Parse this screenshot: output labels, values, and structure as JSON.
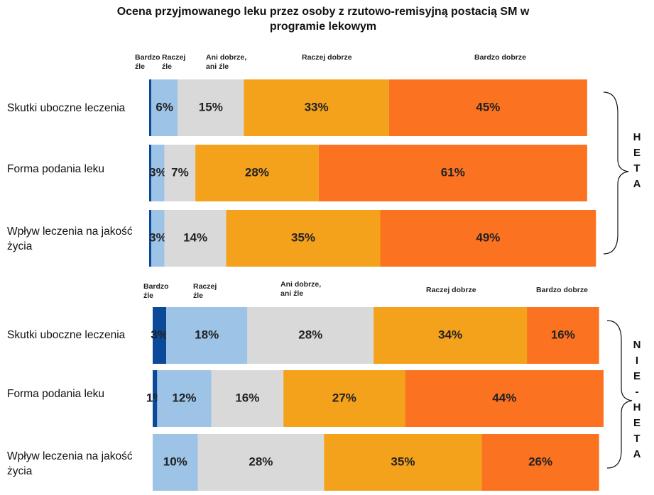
{
  "chart_data": [
    {
      "type": "bar",
      "orientation": "horizontal",
      "stacked": true,
      "title": "Ocena przyjmowanego leku przez osoby z rzutowo-remisyjną postacią SM w programie lekowym",
      "group_label": "HETA",
      "categories": [
        "Skutki uboczne leczenia",
        "Forma podania leku",
        "Wpływ leczenia na jakość życia"
      ],
      "series": [
        {
          "name": "Bardzo źle",
          "color": "#0b4a99",
          "values": [
            0.5,
            0.5,
            0.5
          ],
          "value_labels": [
            null,
            null,
            null
          ]
        },
        {
          "name": "Raczej źle",
          "color": "#9dc3e6",
          "values": [
            6,
            3,
            3
          ],
          "value_labels": [
            "6%",
            "3%",
            "3%"
          ]
        },
        {
          "name": "Ani dobrze, ani źle",
          "color": "#d9d9d9",
          "values": [
            15,
            7,
            14
          ],
          "value_labels": [
            "15%",
            "7%",
            "14%"
          ]
        },
        {
          "name": "Raczej dobrze",
          "color": "#f4a11c",
          "values": [
            33,
            28,
            35
          ],
          "value_labels": [
            "33%",
            "28%",
            "35%"
          ]
        },
        {
          "name": "Bardzo dobrze",
          "color": "#fb7320",
          "values": [
            45,
            61,
            49
          ],
          "value_labels": [
            "45%",
            "61%",
            "49%"
          ]
        }
      ]
    },
    {
      "type": "bar",
      "orientation": "horizontal",
      "stacked": true,
      "group_label": "NIE-HETA",
      "categories": [
        "Skutki uboczne leczenia",
        "Forma podania leku",
        "Wpływ leczenia na jakość życia"
      ],
      "series": [
        {
          "name": "Bardzo źle",
          "color": "#0b4a99",
          "values": [
            3,
            1,
            null
          ],
          "value_labels": [
            "3%",
            "1%",
            null
          ]
        },
        {
          "name": "Raczej źle",
          "color": "#9dc3e6",
          "values": [
            18,
            12,
            10
          ],
          "value_labels": [
            "18%",
            "12%",
            "10%"
          ]
        },
        {
          "name": "Ani dobrze, ani źle",
          "color": "#d9d9d9",
          "values": [
            28,
            16,
            28
          ],
          "value_labels": [
            "28%",
            "16%",
            "28%"
          ]
        },
        {
          "name": "Raczej dobrze",
          "color": "#f4a11c",
          "values": [
            34,
            27,
            35
          ],
          "value_labels": [
            "34%",
            "27%",
            "35%"
          ]
        },
        {
          "name": "Bardzo dobrze",
          "color": "#fb7320",
          "values": [
            16,
            44,
            26
          ],
          "value_labels": [
            "16%",
            "44%",
            "26%"
          ]
        }
      ]
    }
  ]
}
